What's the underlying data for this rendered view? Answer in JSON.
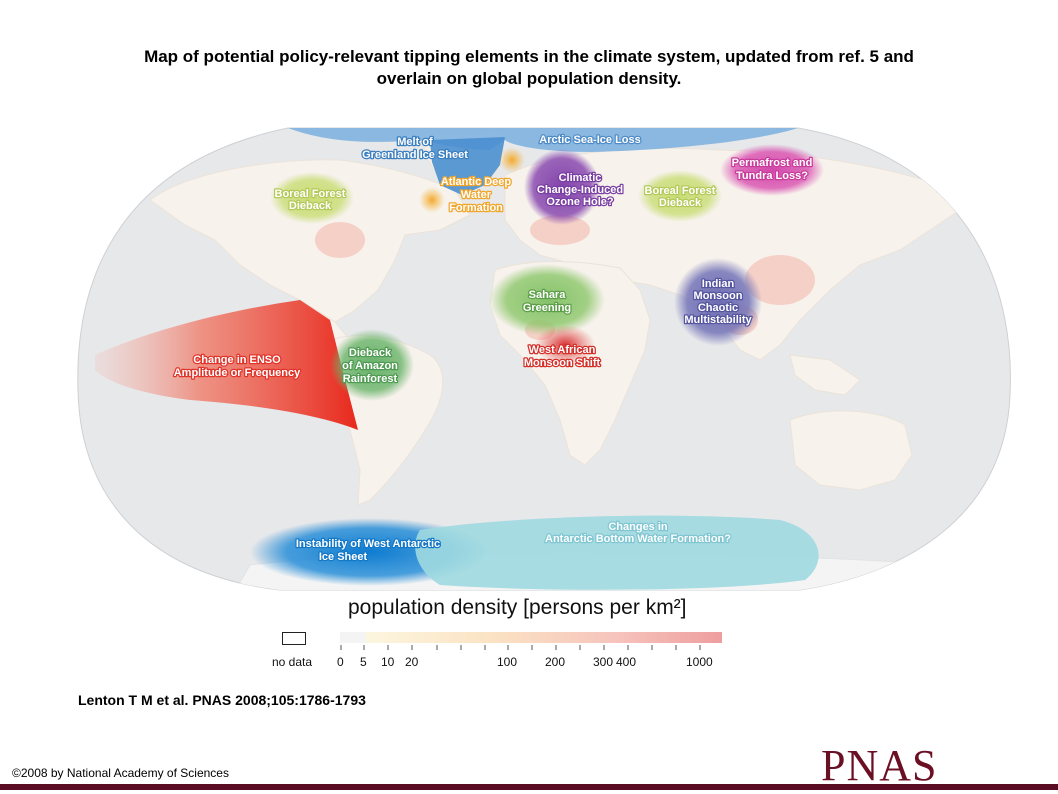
{
  "title": {
    "line1": "Map of potential policy-relevant tipping elements in the climate system, updated from ref. 5 and",
    "line2": "overlain on global population density."
  },
  "map_labels": {
    "arctic_sea_ice": "Arctic Sea-Ice Loss",
    "greenland_l1": "Melt of",
    "greenland_l2": "Greenland Ice Sheet",
    "atlantic_l1": "Atlantic Deep",
    "atlantic_l2": "Water",
    "atlantic_l3": "Formation",
    "ozone_l1": "Climatic",
    "ozone_l2": "Change-Induced",
    "ozone_l3": "Ozone Hole?",
    "permafrost_l1": "Permafrost and",
    "permafrost_l2": "Tundra Loss?",
    "boreal_w_l1": "Boreal Forest",
    "boreal_w_l2": "Dieback",
    "boreal_e_l1": "Boreal Forest",
    "boreal_e_l2": "Dieback",
    "sahara_l1": "Sahara",
    "sahara_l2": "Greening",
    "indian_l1": "Indian",
    "indian_l2": "Monsoon",
    "indian_l3": "Chaotic",
    "indian_l4": "Multistability",
    "west_african_l1": "West African",
    "west_african_l2": "Monsoon Shift",
    "enso_l1": "Change in ENSO",
    "enso_l2": "Amplitude or Frequency",
    "amazon_l1": "Dieback",
    "amazon_l2": "of Amazon",
    "amazon_l3": "Rainforest",
    "west_antarctic_l1": "Instability of West Antarctic",
    "west_antarctic_l2": "Ice Sheet",
    "antarctic_bottom_l1": "Changes in",
    "antarctic_bottom_l2": "Antarctic Bottom Water Formation?"
  },
  "legend": {
    "title": "population density [persons per km²]",
    "no_data": "no data",
    "ticks": [
      "0",
      "5",
      "10",
      "20",
      "100",
      "200",
      "300",
      "400",
      "1000"
    ]
  },
  "colors": {
    "enso": "#e8392c",
    "west_african": "#e03a33",
    "amazon": "#6ab46a",
    "sahara": "#8cc76a",
    "boreal": "#c6dc6e",
    "indian": "#6f6fb6",
    "ozone": "#8a4bb0",
    "permafrost": "#d94fb0",
    "atlantic": "#f5b43a",
    "greenland": "#4a8fd0",
    "arctic": "#7fb3e0",
    "west_antarctic": "#1b86d4",
    "antarctic_bottom": "#9fd9e0",
    "land": "#f7f2ec",
    "ocean": "#e7e8ea",
    "pnas": "#6b0f24"
  },
  "citation": "Lenton T M et al. PNAS 2008;105:1786-1793",
  "copyright": "©2008 by National Academy of Sciences",
  "logo": "PNAS"
}
